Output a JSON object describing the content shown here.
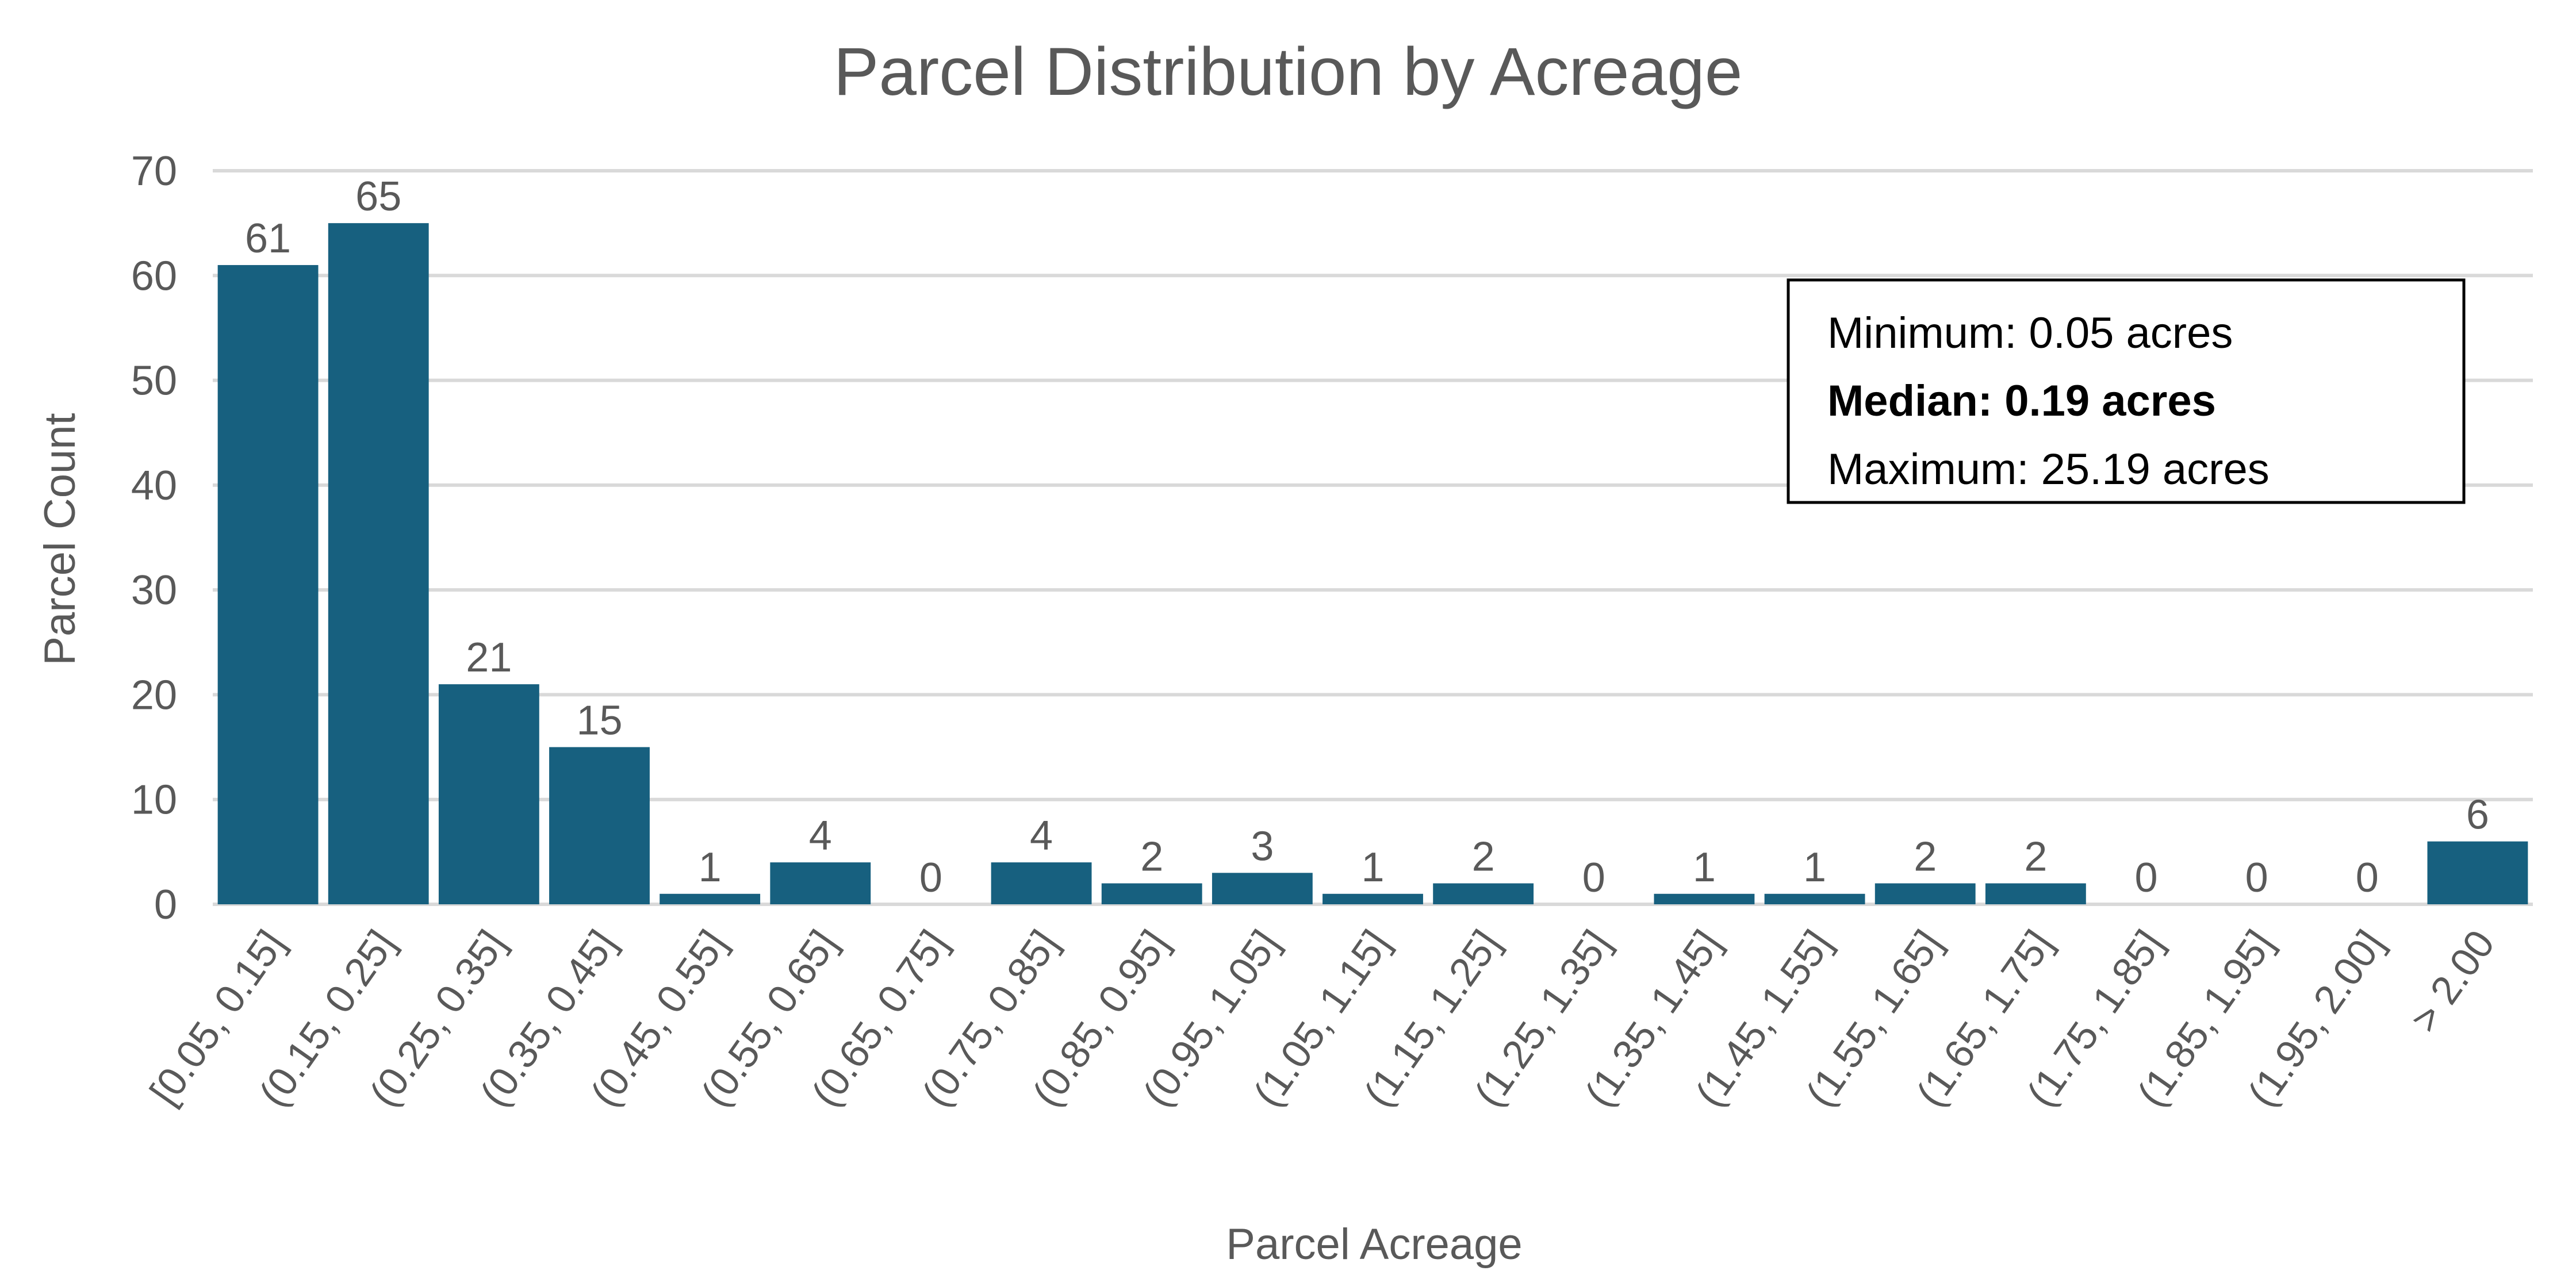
{
  "chart_data": {
    "type": "bar",
    "title": "Parcel Distribution by Acreage",
    "xlabel": "Parcel Acreage",
    "ylabel": "Parcel Count",
    "ylim": [
      0,
      70
    ],
    "yticks": [
      0,
      10,
      20,
      30,
      40,
      50,
      60,
      70
    ],
    "grid": true,
    "categories": [
      "[0.05, 0.15]",
      "(0.15, 0.25]",
      "(0.25, 0.35]",
      "(0.35, 0.45]",
      "(0.45, 0.55]",
      "(0.55, 0.65]",
      "(0.65, 0.75]",
      "(0.75, 0.85]",
      "(0.85, 0.95]",
      "(0.95, 1.05]",
      "(1.05, 1.15]",
      "(1.15, 1.25]",
      "(1.25, 1.35]",
      "(1.35, 1.45]",
      "(1.45, 1.55]",
      "(1.55, 1.65]",
      "(1.65, 1.75]",
      "(1.75, 1.85]",
      "(1.85, 1.95]",
      "(1.95, 2.00]",
      "> 2.00"
    ],
    "values": [
      61,
      65,
      21,
      15,
      1,
      4,
      0,
      4,
      2,
      3,
      1,
      2,
      0,
      1,
      1,
      2,
      2,
      0,
      0,
      0,
      6
    ],
    "bar_color": "#17607f",
    "annotation": {
      "placement": "top-right",
      "lines": [
        {
          "text": "Minimum: 0.05 acres",
          "bold": false
        },
        {
          "text": "Median: 0.19 acres",
          "bold": true
        },
        {
          "text": "Maximum: 25.19 acres",
          "bold": false
        }
      ]
    }
  }
}
